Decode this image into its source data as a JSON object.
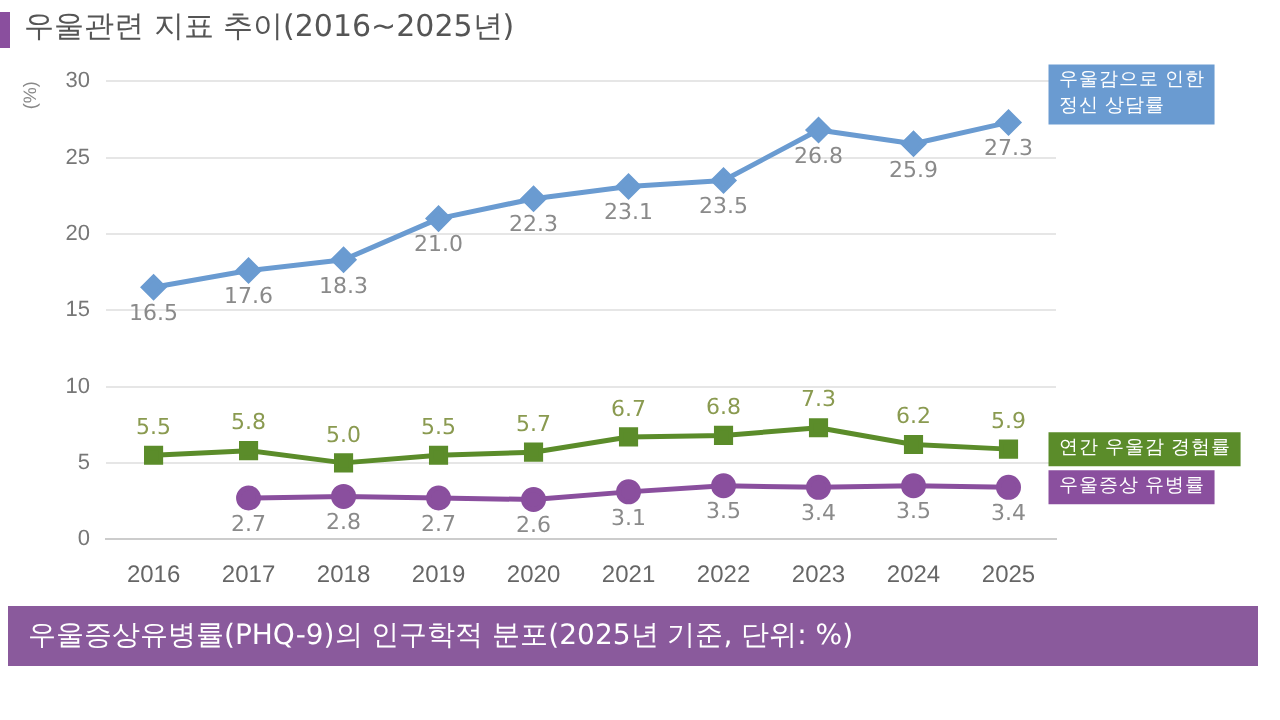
{
  "chart_data": {
    "type": "line",
    "title": "우울관련 지표 추이(2016~2025년)",
    "ylabel": "(%)",
    "categories": [
      "2016",
      "2017",
      "2018",
      "2019",
      "2020",
      "2021",
      "2022",
      "2023",
      "2024",
      "2025"
    ],
    "series": [
      {
        "name": "우울감으로 인한 정신 상담률",
        "color": "#6a9bd1",
        "marker": "diamond",
        "values": [
          16.5,
          17.6,
          18.3,
          21.0,
          22.3,
          23.1,
          23.5,
          26.8,
          25.9,
          27.3
        ],
        "value_labels": [
          "16.5",
          "17.6",
          "18.3",
          "21.0",
          "22.3",
          "23.1",
          "23.5",
          "26.8",
          "25.9",
          "27.3"
        ]
      },
      {
        "name": "연간 우울감 경험률",
        "color": "#5b8c2a",
        "marker": "square",
        "values": [
          5.5,
          5.8,
          5.0,
          5.5,
          5.7,
          6.7,
          6.8,
          7.3,
          6.2,
          5.9
        ],
        "value_labels": [
          "5.5",
          "5.8",
          "5.0",
          "5.5",
          "5.7",
          "6.7",
          "6.8",
          "7.3",
          "6.2",
          "5.9"
        ]
      },
      {
        "name": "우울증상 유병률",
        "color": "#8a4f9e",
        "marker": "circle",
        "values": [
          null,
          2.7,
          2.8,
          2.7,
          2.6,
          3.1,
          3.5,
          3.4,
          3.5,
          3.4
        ],
        "value_labels": [
          null,
          "2.7",
          "2.8",
          "2.7",
          "2.6",
          "3.1",
          "3.5",
          "3.4",
          "3.5",
          "3.4"
        ]
      }
    ],
    "ylim": [
      0,
      30
    ],
    "yticks": [
      0,
      5,
      10,
      15,
      20,
      25,
      30
    ],
    "grid": "y",
    "legend": false,
    "annotations": [
      "우울증상유병률(PHQ-9)의 인구학적 분포(2025년 기준, 단위: %)"
    ]
  }
}
